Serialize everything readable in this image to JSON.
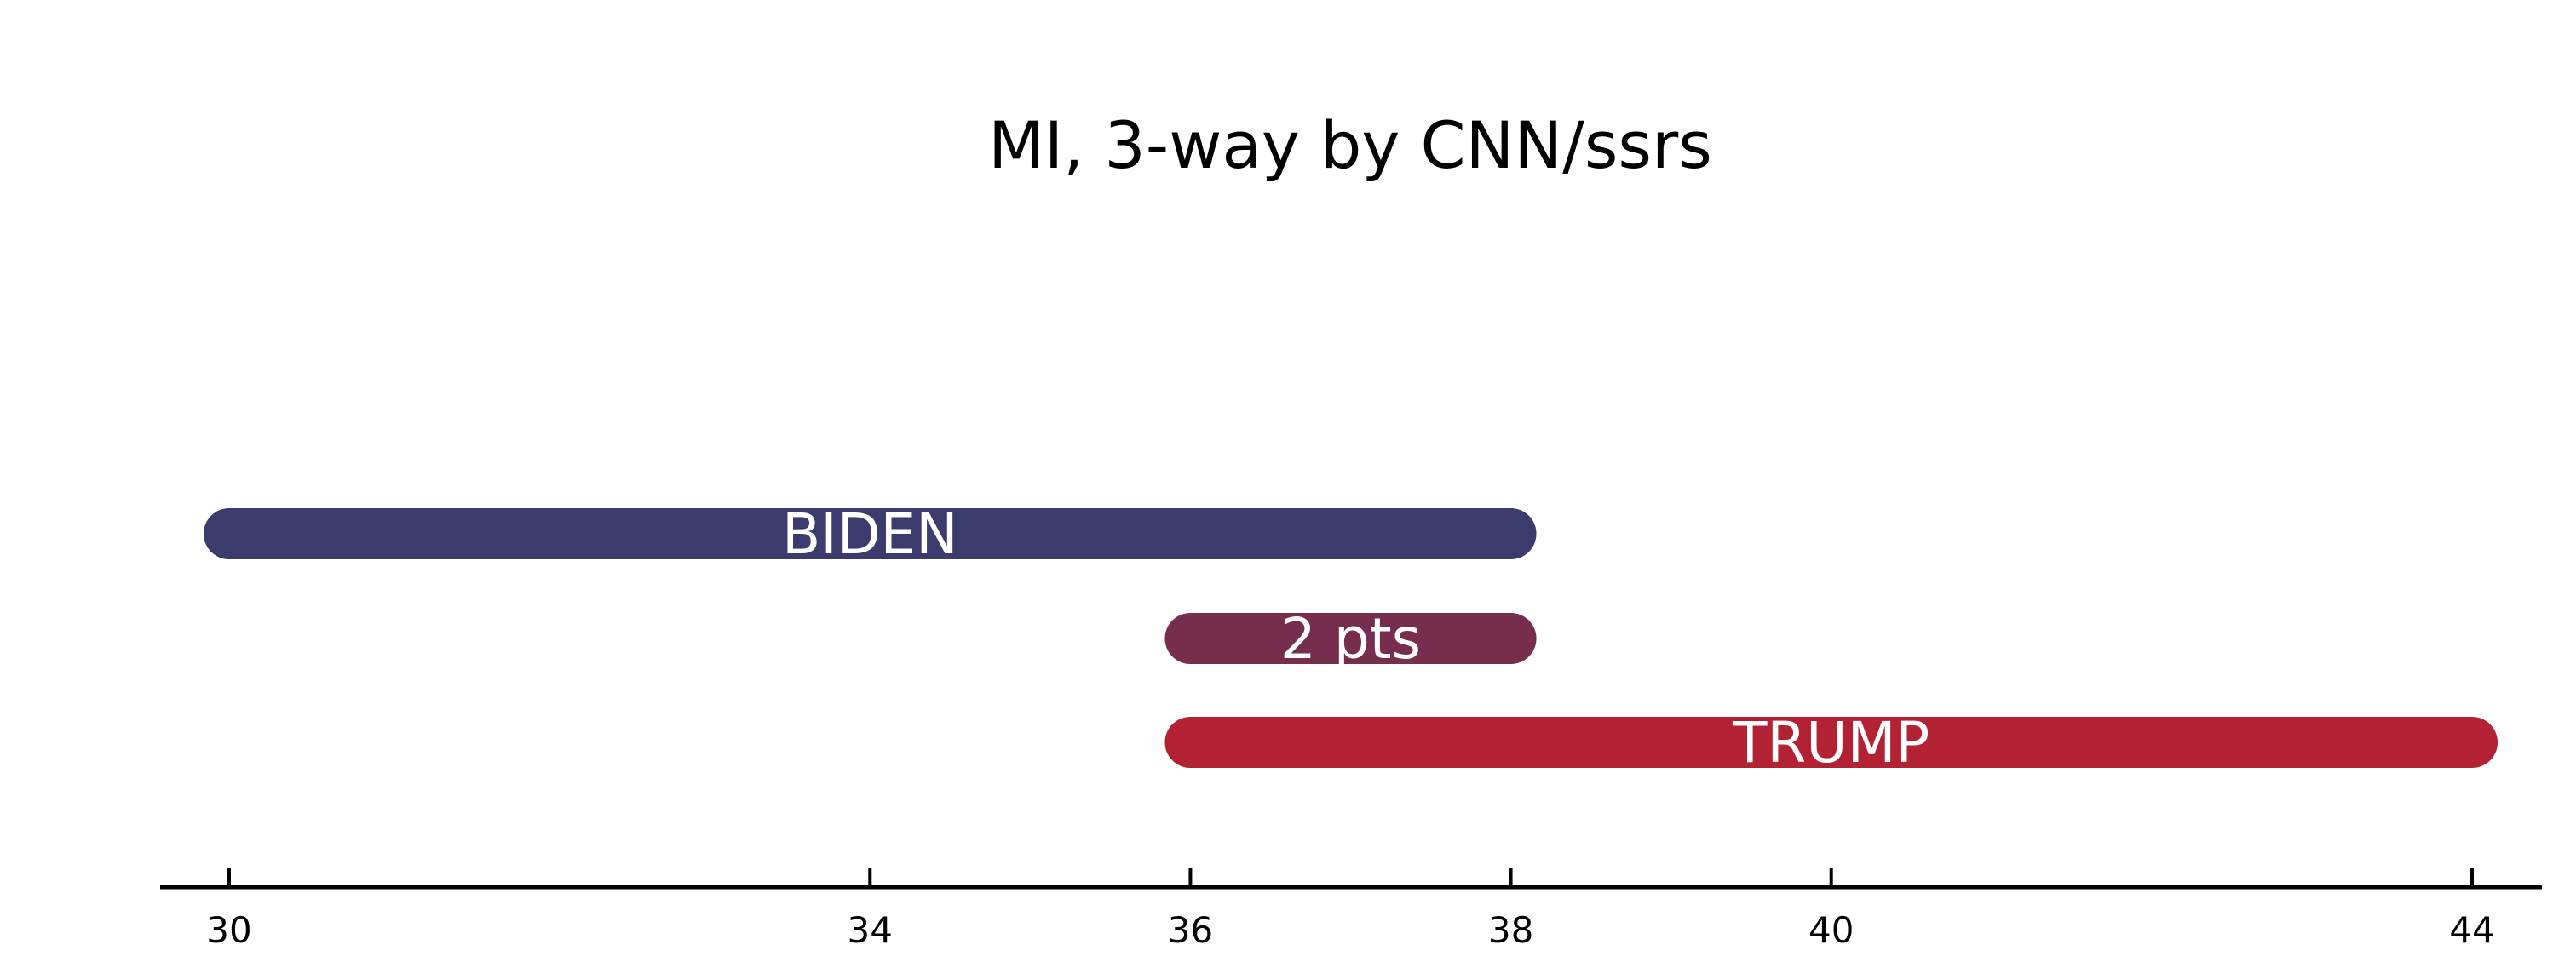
{
  "chart_data": {
    "type": "bar",
    "orientation": "horizontal-range",
    "title": "MI, 3-way by CNN/ssrs",
    "xlabel": "",
    "ylabel": "",
    "xlim": [
      30,
      44
    ],
    "grid": false,
    "x_ticks": [
      30,
      34,
      36,
      38,
      40,
      44
    ],
    "bars": [
      {
        "label": "BIDEN",
        "start": 30,
        "end": 38,
        "color": "#3c3b6e"
      },
      {
        "label": "2 pts",
        "start": 36,
        "end": 38,
        "color": "#772d4d"
      },
      {
        "label": "TRUMP",
        "start": 36,
        "end": 44,
        "color": "#b22234"
      }
    ]
  }
}
